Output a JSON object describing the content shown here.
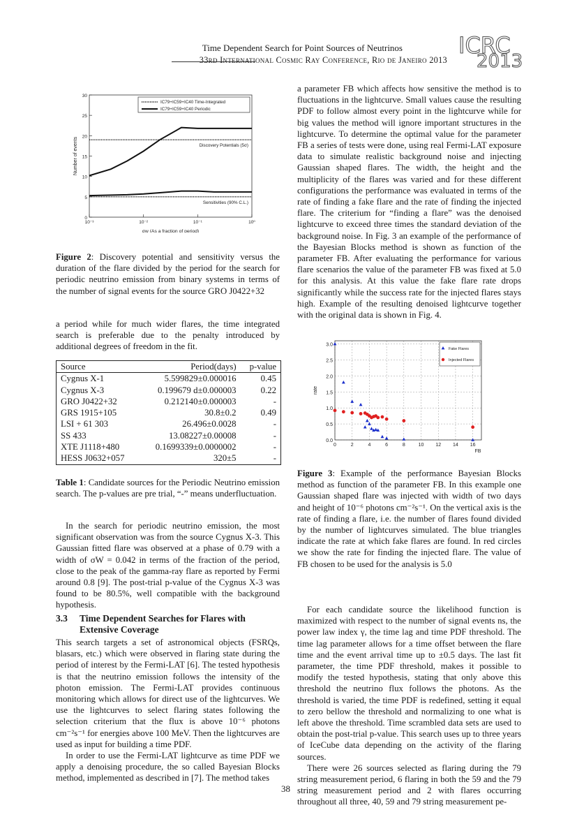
{
  "header": {
    "title": "Time Dependent Search for Point Sources of Neutrinos",
    "conference": "33rd International Cosmic Ray Conference, Rio de Janeiro 2013",
    "logo_line1": "ICRC",
    "logo_line2": "2013"
  },
  "figure2": {
    "caption_label": "Figure 2",
    "caption_text": ": Discovery potential and sensitivity versus the duration of the flare divided by the period for the search for periodic neutrino emission from binary systems in terms of the number of signal events for the source GRO J0422+32"
  },
  "left_col": {
    "para1": "a period while for much wider flares, the time integrated search is preferable due to the penalty introduced by additional degrees of freedom in the fit.",
    "para2": "In the search for periodic neutrino emission, the most significant observation was from the source Cygnus X-3. This Gaussian fitted flare was observed at a phase of 0.79 with a width of σW = 0.042 in terms of the fraction of the period, close to the peak of the gamma-ray flare as reported by Fermi around 0.8 [9]. The post-trial p-value of the Cygnus X-3 was found to be 80.5%, well compatible with the background hypothesis.",
    "section_number": "3.3",
    "section_title_line1": "Time Dependent Searches for Flares with",
    "section_title_line2": "Extensive Coverage",
    "para3": "This search targets a set of astronomical objects (FSRQs, blasars, etc.) which were observed in flaring state during the period of interest by the Fermi-LAT [6]. The tested hypothesis is that the neutrino emission follows the intensity of the photon emission. The Fermi-LAT provides continuous monitoring which allows for direct use of the lightcurves. We use the lightcurves to select flaring states following the selection criterium that the flux is above 10⁻⁶ photons cm⁻²s⁻¹ for energies above 100 MeV. Then the lightcurves are used as input for building a time PDF.",
    "para4": "In order to use the Fermi-LAT lightcurve as time PDF we apply a denoising procedure, the so called Bayesian Blocks method, implemented as described in [7]. The method takes"
  },
  "table1": {
    "headers": [
      "Source",
      "Period(days)",
      "p-value"
    ],
    "rows": [
      [
        "Cygnus X-1",
        "5.599829±0.000016",
        "0.45"
      ],
      [
        "Cygnus X-3",
        "0.199679 d±0.000003",
        "0.22"
      ],
      [
        "GRO J0422+32",
        "0.212140±0.000003",
        "-"
      ],
      [
        "GRS 1915+105",
        "30.8±0.2",
        "0.49"
      ],
      [
        "LSI + 61 303",
        "26.496±0.0028",
        "-"
      ],
      [
        "SS 433",
        "13.08227±0.00008",
        "-"
      ],
      [
        "XTE J1118+480",
        "0.1699339±0.0000002",
        "-"
      ],
      [
        "HESS J0632+057",
        "320±5",
        "-"
      ]
    ],
    "caption_label": "Table 1",
    "caption_text": ": Candidate sources for the Periodic Neutrino emission search. The p-values are pre trial, “-” means underfluctuation."
  },
  "right_col": {
    "para1": "a parameter FB which affects how sensitive the method is to fluctuations in the lightcurve. Small values cause the resulting PDF to follow almost every point in the lightcurve while for big values the method will ignore important structures in the lightcurve. To determine the optimal value for the parameter FB a series of tests were done, using real Fermi-LAT exposure data to simulate realistic background noise and injecting Gaussian shaped flares. The width, the height and the multiplicity of the flares was varied and for these different configurations the performance was evaluated in terms of the rate of finding a fake flare and the rate of finding the injected flare. The criterium for “finding a flare” was the denoised lightcurve to exceed three times the standard deviation of the background noise. In Fig. 3 an example of the performance of the Bayesian Blocks method is shown as function of the parameter FB. After evaluating the performance for various flare scenarios the value of the parameter FB was fixed at 5.0 for this analysis. At this value the fake flare rate drops significantly while the success rate for the injected flares stays high. Example of the resulting denoised lightcurve together with the original data is shown in Fig. 4.",
    "para2": "For each candidate source the likelihood function is maximized with respect to the number of signal events ns, the power law index γ, the time lag and time PDF threshold. The time lag parameter allows for a time offset between the flare time and the event arrival time up to ±0.5 days. The last fit parameter, the time PDF threshold, makes it possible to modify the tested hypothesis, stating that only above this threshold the neutrino flux follows the photons. As the threshold is varied, the time PDF is redefined, setting it equal to zero bellow the threshold and normalizing to one what is left above the threshold. Time scrambled data sets are used to obtain the post-trial p-value. This search uses up to three years of IceCube data depending on the activity of the flaring sources.",
    "para3": "There were 26 sources selected as flaring during the 79 string measurement period, 6 flaring in both the 59 and the 79 string measurement period and 2 with flares occurring throughout all three, 40, 59 and 79 string measurement pe-"
  },
  "figure3": {
    "caption_label": "Figure 3",
    "caption_text": ": Example of the performance Bayesian Blocks method as function of the parameter FB. In this example one Gaussian shaped flare was injected with width of two days and height of 10⁻⁶ photons cm⁻²s⁻¹. On the vertical axis is the rate of finding a flare, i.e. the number of flares found divided by the number of lightcurves simulated. The blue triangles indicate the rate at which fake flares are found. In red circles we show the rate for finding the injected flare. The value of FB chosen to be used for the analysis is 5.0"
  },
  "page_number": "38",
  "chart_data": [
    {
      "type": "line",
      "xscale": "log",
      "xlabel": "σw (As a fraction of period)",
      "ylabel": "Number of events",
      "xlim": [
        0.001,
        1
      ],
      "ylim": [
        0,
        30
      ],
      "xticks": [
        "10⁻³",
        "10⁻²",
        "10⁻¹",
        "10⁰"
      ],
      "yticks": [
        0,
        5,
        10,
        15,
        20,
        25,
        30
      ],
      "legend": [
        "IC79+IC59+IC40 Time-Integrated",
        "IC79+IC59+IC40 Periodic"
      ],
      "legend_position": "top-right",
      "annotations": [
        "Discovery Potentials (5σ)",
        "Sensitivities (90% C.L.)"
      ],
      "series": [
        {
          "name": "IC79+IC59+IC40 Periodic",
          "style": "solid",
          "x": [
            0.001,
            0.0025,
            0.005,
            0.01,
            0.02,
            0.05,
            0.1,
            0.2,
            0.5,
            1
          ],
          "y": [
            10.2,
            11.8,
            13.8,
            16.2,
            19.0,
            22.0,
            21.8,
            21.8,
            21.8,
            21.8
          ]
        },
        {
          "name": "IC79+IC59+IC40 Time-Integrated",
          "style": "dotted",
          "x": [
            0.001,
            1
          ],
          "y": [
            19.0,
            19.0
          ]
        },
        {
          "name": "IC79+IC59+IC40 Periodic",
          "style": "solid",
          "x": [
            0.001,
            0.005,
            0.01,
            0.02,
            0.05,
            0.1,
            0.2,
            0.5,
            1
          ],
          "y": [
            5.3,
            5.5,
            5.7,
            6.0,
            6.4,
            6.4,
            6.2,
            6.2,
            6.2
          ]
        },
        {
          "name": "IC79+IC59+IC40 Time-Integrated",
          "style": "dotted",
          "x": [
            0.001,
            1
          ],
          "y": [
            5.0,
            5.0
          ]
        }
      ]
    },
    {
      "type": "scatter",
      "xlabel": "FB",
      "ylabel": "rate",
      "xlim": [
        0,
        17
      ],
      "ylim": [
        0,
        3.1
      ],
      "xticks": [
        0,
        2,
        4,
        6,
        8,
        10,
        12,
        14,
        16
      ],
      "yticks": [
        0.0,
        0.5,
        1.0,
        1.5,
        2.0,
        2.5,
        3.0
      ],
      "grid": true,
      "legend_position": "top-right",
      "series": [
        {
          "name": "Fake Flares",
          "marker": "triangle",
          "color": "#1a2ecc",
          "x": [
            0,
            1,
            2,
            3,
            3.5,
            3.75,
            4,
            4.25,
            4.5,
            4.75,
            5,
            5.5,
            6,
            8,
            16
          ],
          "y": [
            3.0,
            1.8,
            1.2,
            1.1,
            0.4,
            0.6,
            0.5,
            0.35,
            0.3,
            0.32,
            0.3,
            0.1,
            0.05,
            0.02,
            0.0
          ]
        },
        {
          "name": "Injected Flares",
          "marker": "circle",
          "color": "#e02020",
          "x": [
            0,
            1,
            2,
            3,
            3.5,
            3.75,
            4,
            4.25,
            4.5,
            4.75,
            5,
            5.5,
            6,
            8,
            16
          ],
          "y": [
            0.92,
            0.88,
            0.85,
            0.82,
            0.84,
            0.8,
            0.75,
            0.7,
            0.73,
            0.75,
            0.7,
            0.72,
            0.65,
            0.6,
            0.4
          ]
        }
      ]
    }
  ]
}
